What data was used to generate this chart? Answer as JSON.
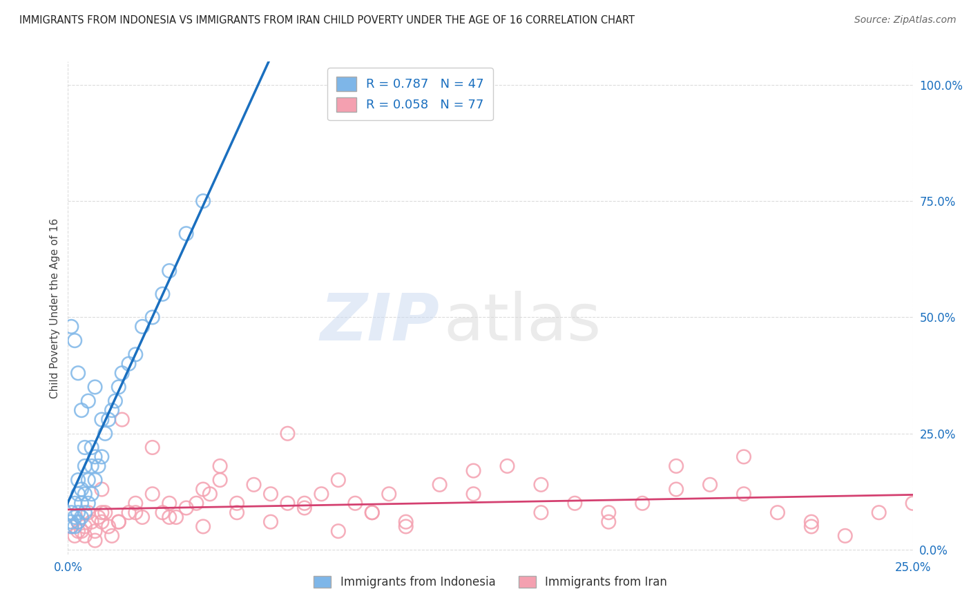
{
  "title": "IMMIGRANTS FROM INDONESIA VS IMMIGRANTS FROM IRAN CHILD POVERTY UNDER THE AGE OF 16 CORRELATION CHART",
  "source": "Source: ZipAtlas.com",
  "ylabel": "Child Poverty Under the Age of 16",
  "xlim": [
    0.0,
    0.25
  ],
  "ylim": [
    -0.01,
    1.05
  ],
  "xtick_labels": [
    "0.0%",
    "25.0%"
  ],
  "ytick_labels": [
    "0.0%",
    "25.0%",
    "50.0%",
    "75.0%",
    "100.0%"
  ],
  "ytick_positions": [
    0.0,
    0.25,
    0.5,
    0.75,
    1.0
  ],
  "legend_indonesia": "Immigrants from Indonesia",
  "legend_iran": "Immigrants from Iran",
  "R_indonesia": "0.787",
  "N_indonesia": "47",
  "R_iran": "0.058",
  "N_iran": "77",
  "color_indonesia": "#7EB6E8",
  "color_iran": "#F4A0B0",
  "line_color_indonesia": "#1A6FBF",
  "line_color_iran": "#D44070",
  "tick_color": "#1A6FBF",
  "background_color": "#FFFFFF",
  "indonesia_x": [
    0.001,
    0.001,
    0.001,
    0.002,
    0.002,
    0.002,
    0.003,
    0.003,
    0.003,
    0.003,
    0.004,
    0.004,
    0.004,
    0.005,
    0.005,
    0.005,
    0.006,
    0.006,
    0.007,
    0.007,
    0.007,
    0.008,
    0.008,
    0.009,
    0.01,
    0.01,
    0.011,
    0.012,
    0.013,
    0.014,
    0.015,
    0.016,
    0.018,
    0.02,
    0.022,
    0.025,
    0.028,
    0.03,
    0.035,
    0.04,
    0.002,
    0.003,
    0.001,
    0.004,
    0.006,
    0.008,
    0.005
  ],
  "indonesia_y": [
    0.05,
    0.06,
    0.08,
    0.05,
    0.07,
    0.1,
    0.06,
    0.08,
    0.12,
    0.15,
    0.07,
    0.1,
    0.13,
    0.08,
    0.12,
    0.18,
    0.1,
    0.15,
    0.12,
    0.18,
    0.22,
    0.15,
    0.2,
    0.18,
    0.2,
    0.28,
    0.25,
    0.28,
    0.3,
    0.32,
    0.35,
    0.38,
    0.4,
    0.42,
    0.48,
    0.5,
    0.55,
    0.6,
    0.68,
    0.75,
    0.45,
    0.38,
    0.48,
    0.3,
    0.32,
    0.35,
    0.22
  ],
  "iran_x": [
    0.001,
    0.002,
    0.003,
    0.004,
    0.005,
    0.006,
    0.007,
    0.008,
    0.009,
    0.01,
    0.011,
    0.012,
    0.013,
    0.015,
    0.016,
    0.018,
    0.02,
    0.022,
    0.025,
    0.028,
    0.03,
    0.032,
    0.035,
    0.038,
    0.04,
    0.042,
    0.045,
    0.05,
    0.055,
    0.06,
    0.065,
    0.07,
    0.075,
    0.08,
    0.085,
    0.09,
    0.095,
    0.1,
    0.11,
    0.12,
    0.13,
    0.14,
    0.15,
    0.16,
    0.17,
    0.18,
    0.19,
    0.2,
    0.21,
    0.22,
    0.23,
    0.24,
    0.25,
    0.003,
    0.005,
    0.008,
    0.01,
    0.015,
    0.02,
    0.03,
    0.04,
    0.05,
    0.06,
    0.07,
    0.08,
    0.09,
    0.1,
    0.12,
    0.14,
    0.16,
    0.18,
    0.2,
    0.22,
    0.01,
    0.025,
    0.045,
    0.065
  ],
  "iran_y": [
    0.05,
    0.03,
    0.06,
    0.04,
    0.05,
    0.08,
    0.06,
    0.04,
    0.07,
    0.06,
    0.08,
    0.05,
    0.03,
    0.06,
    0.28,
    0.08,
    0.1,
    0.07,
    0.12,
    0.08,
    0.1,
    0.07,
    0.09,
    0.1,
    0.13,
    0.12,
    0.15,
    0.1,
    0.14,
    0.12,
    0.1,
    0.09,
    0.12,
    0.15,
    0.1,
    0.08,
    0.12,
    0.05,
    0.14,
    0.17,
    0.18,
    0.14,
    0.1,
    0.08,
    0.1,
    0.13,
    0.14,
    0.12,
    0.08,
    0.06,
    0.03,
    0.08,
    0.1,
    0.04,
    0.03,
    0.02,
    0.08,
    0.06,
    0.08,
    0.07,
    0.05,
    0.08,
    0.06,
    0.1,
    0.04,
    0.08,
    0.06,
    0.12,
    0.08,
    0.06,
    0.18,
    0.2,
    0.05,
    0.13,
    0.22,
    0.18,
    0.25
  ]
}
